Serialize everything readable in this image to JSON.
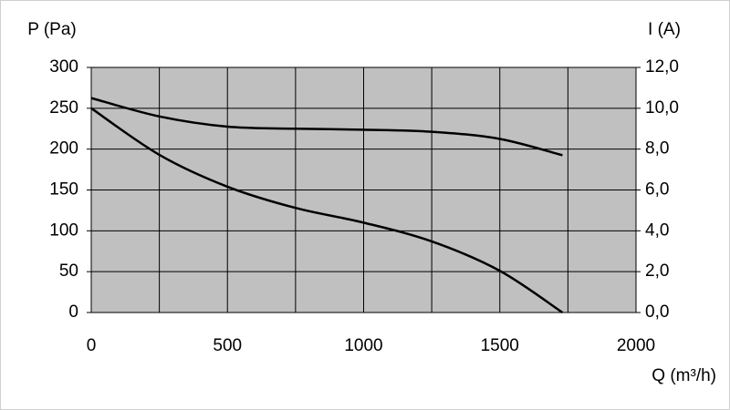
{
  "chart_data": {
    "type": "line",
    "y_label": "P (Pa)",
    "y2_label": "I (A)",
    "x_label": "Q (m³/h)",
    "xlim": [
      0,
      2000
    ],
    "xticks": [
      0,
      500,
      1000,
      1500,
      2000
    ],
    "x_minor_grid": [
      250,
      750,
      1250,
      1750
    ],
    "ylim": [
      0,
      300
    ],
    "yticks": [
      0,
      50,
      100,
      150,
      200,
      250,
      300
    ],
    "y2lim": [
      0,
      12
    ],
    "y2ticks": [
      {
        "value": 0,
        "label": "0,0"
      },
      {
        "value": 2,
        "label": "2,0"
      },
      {
        "value": 4,
        "label": "4,0"
      },
      {
        "value": 6,
        "label": "6,0"
      },
      {
        "value": 8,
        "label": "8,0"
      },
      {
        "value": 10,
        "label": "10,0"
      },
      {
        "value": 12,
        "label": "12,0"
      }
    ],
    "grid": true,
    "plot_background": "#c0c0c0",
    "x": [
      0,
      250,
      500,
      750,
      1000,
      1250,
      1500,
      1730
    ],
    "series": [
      {
        "color": "#000000",
        "values": [
          250,
          193,
          154,
          128,
          110,
          87,
          51,
          0
        ]
      },
      {
        "color": "#000000",
        "axis": "y2",
        "values": [
          10.5,
          9.6,
          9.1,
          9.0,
          8.95,
          8.85,
          8.5,
          7.7
        ]
      }
    ]
  }
}
